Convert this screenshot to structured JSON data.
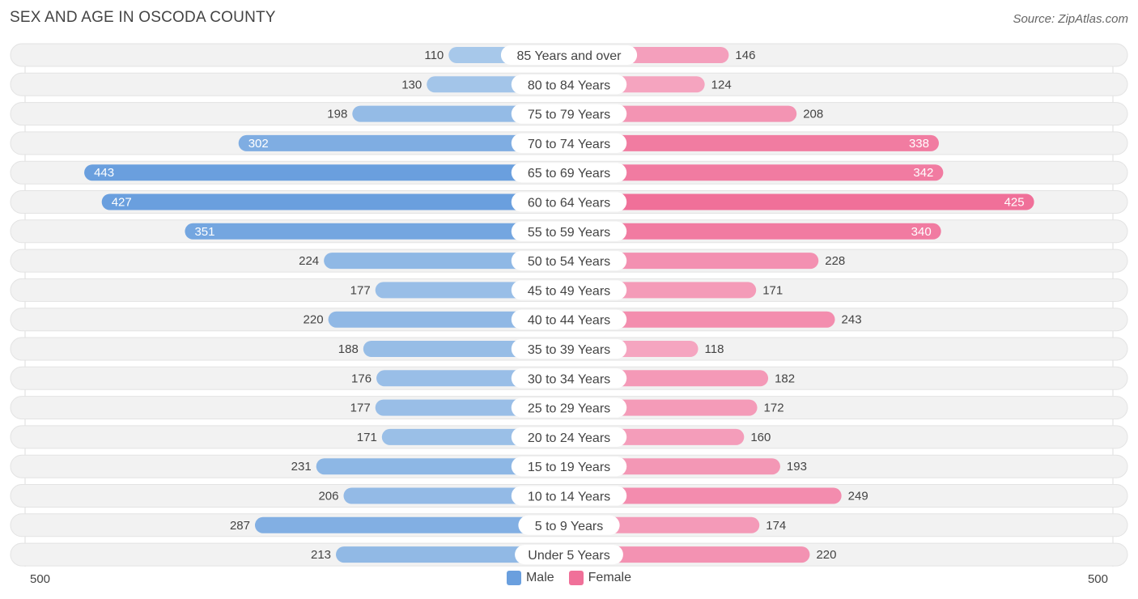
{
  "header": {
    "title": "SEX AND AGE IN OSCODA COUNTY",
    "source": "Source: ZipAtlas.com"
  },
  "legend": {
    "male_label": "Male",
    "female_label": "Female"
  },
  "axis": {
    "left_label": "500",
    "right_label": "500"
  },
  "colors": {
    "male_light": "#a9c9ea",
    "male_dark": "#6a9fde",
    "female_light": "#f5a8c2",
    "female_dark": "#f07099",
    "track": "#f2f2f2"
  },
  "chart_data": {
    "type": "bar",
    "orientation": "horizontal-diverging",
    "title": "SEX AND AGE IN OSCODA COUNTY",
    "categories": [
      "85 Years and over",
      "80 to 84 Years",
      "75 to 79 Years",
      "70 to 74 Years",
      "65 to 69 Years",
      "60 to 64 Years",
      "55 to 59 Years",
      "50 to 54 Years",
      "45 to 49 Years",
      "40 to 44 Years",
      "35 to 39 Years",
      "30 to 34 Years",
      "25 to 29 Years",
      "20 to 24 Years",
      "15 to 19 Years",
      "10 to 14 Years",
      "5 to 9 Years",
      "Under 5 Years"
    ],
    "series": [
      {
        "name": "Male",
        "values": [
          110,
          130,
          198,
          302,
          443,
          427,
          351,
          224,
          177,
          220,
          188,
          176,
          177,
          171,
          231,
          206,
          287,
          213
        ]
      },
      {
        "name": "Female",
        "values": [
          146,
          124,
          208,
          338,
          342,
          425,
          340,
          228,
          171,
          243,
          118,
          182,
          172,
          160,
          193,
          249,
          174,
          220
        ]
      }
    ],
    "xlim": [
      -500,
      500
    ],
    "legend_position": "bottom-center"
  }
}
